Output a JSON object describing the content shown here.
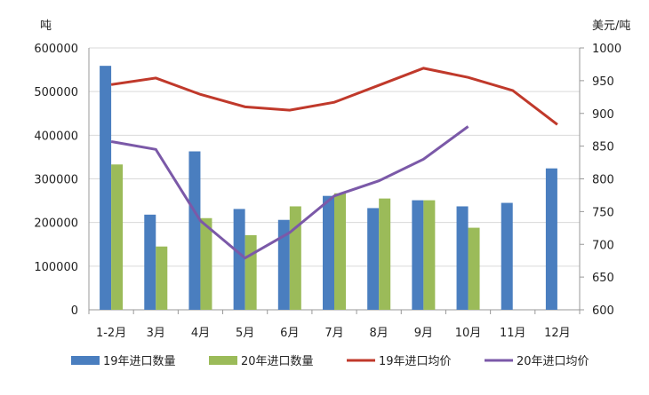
{
  "chart_data": {
    "type": "bar+line",
    "left_axis": {
      "label": "吨",
      "ylim": [
        0,
        600000
      ],
      "ticks": [
        0,
        100000,
        200000,
        300000,
        400000,
        500000,
        600000
      ]
    },
    "right_axis": {
      "label": "美元/吨",
      "ylim": [
        600,
        1000
      ],
      "ticks": [
        600,
        650,
        700,
        750,
        800,
        850,
        900,
        950,
        1000
      ]
    },
    "categories": [
      "1-2月",
      "3月",
      "4月",
      "5月",
      "6月",
      "7月",
      "8月",
      "9月",
      "10月",
      "11月",
      "12月"
    ],
    "series": [
      {
        "name": "19年进口数量",
        "type": "bar",
        "axis": "left",
        "color": "#4a7ebf",
        "values": [
          559000,
          218000,
          363000,
          231000,
          206000,
          261000,
          233000,
          251000,
          237000,
          245000,
          324000
        ]
      },
      {
        "name": "20年进口数量",
        "type": "bar",
        "axis": "left",
        "color": "#9bbb59",
        "values": [
          333000,
          145000,
          210000,
          171000,
          237000,
          267000,
          255000,
          251000,
          188000,
          null,
          null
        ]
      },
      {
        "name": "19年进口均价",
        "type": "line",
        "axis": "right",
        "color": "#c0392b",
        "values": [
          944,
          954,
          929,
          910,
          905,
          917,
          943,
          969,
          955,
          935,
          883
        ]
      },
      {
        "name": "20年进口均价",
        "type": "line",
        "axis": "right",
        "color": "#7b59a8",
        "values": [
          857,
          845,
          736,
          679,
          718,
          774,
          797,
          830,
          880,
          null,
          null
        ]
      }
    ],
    "grid": true,
    "legend": "bottom"
  }
}
